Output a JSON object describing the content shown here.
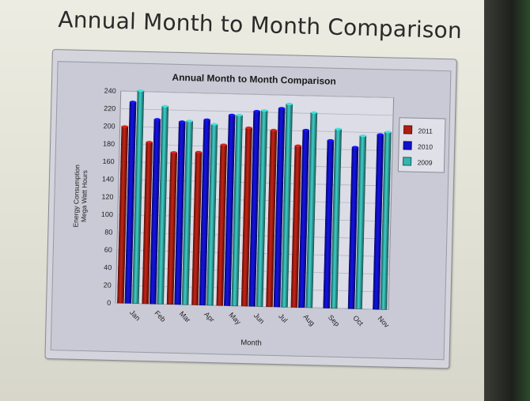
{
  "slide": {
    "title": "Annual Month to Month Comparison"
  },
  "chart_data": {
    "type": "bar",
    "title": "Annual Month to Month Comparison",
    "xlabel": "Month",
    "ylabel_lines": [
      "Energy Consumption",
      "Mega Watt Hours"
    ],
    "categories": [
      "Jan",
      "Feb",
      "Mar",
      "Apr",
      "May",
      "Jun",
      "Jul",
      "Aug",
      "Sep",
      "Oct",
      "Nov"
    ],
    "ylim": [
      0,
      240
    ],
    "yticks": [
      0,
      20,
      40,
      60,
      80,
      100,
      120,
      140,
      160,
      180,
      200,
      220,
      240
    ],
    "grid": true,
    "legend_position": "top-right",
    "series": [
      {
        "name": "2011",
        "color": "#b01e12",
        "values": [
          200,
          183,
          172,
          173,
          182,
          202,
          200,
          183,
          null,
          null,
          null
        ]
      },
      {
        "name": "2010",
        "color": "#1010d0",
        "values": [
          228,
          209,
          207,
          210,
          216,
          221,
          225,
          201,
          190,
          183,
          198
        ]
      },
      {
        "name": "2009",
        "color": "#35b5b0",
        "values": [
          241,
          224,
          208,
          205,
          216,
          222,
          230,
          221,
          203,
          196,
          201
        ]
      }
    ]
  }
}
